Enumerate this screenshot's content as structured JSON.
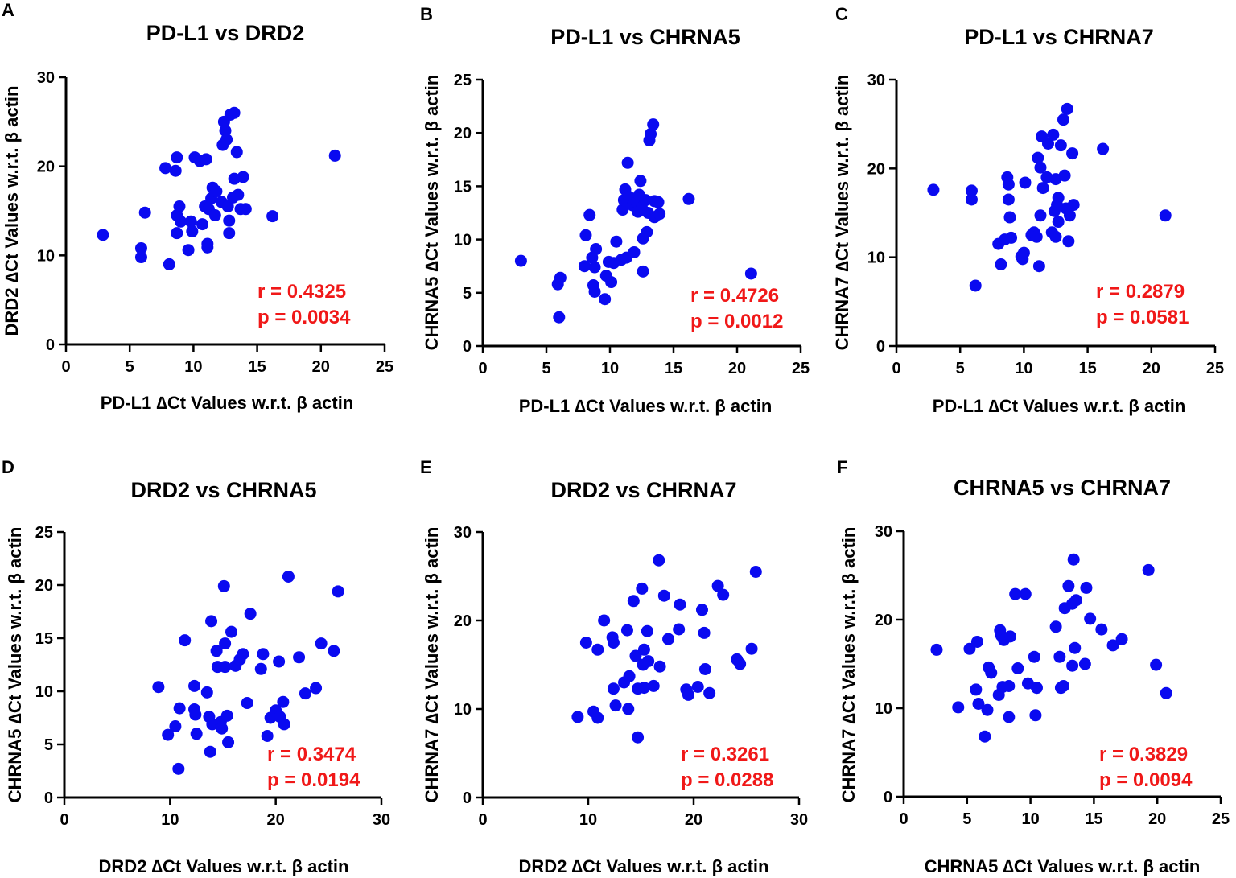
{
  "colors": {
    "point": "#0a0af0",
    "stats": "#f01818",
    "axis": "#000000"
  },
  "chart_data": [
    {
      "panel": "A",
      "type": "scatter",
      "title": "PD-L1 vs DRD2",
      "xlabel": "PD-L1 ∆Ct Values w.r.t. β actin",
      "ylabel": "DRD2 ∆Ct Values w.r.t. β actin",
      "xlim": [
        0,
        25
      ],
      "ylim": [
        0,
        30
      ],
      "xticks": [
        0,
        5,
        10,
        15,
        20,
        25
      ],
      "yticks": [
        0,
        10,
        20,
        30
      ],
      "r_text": "r = 0.4325",
      "p_text": "p = 0.0034",
      "points": [
        [
          2.9,
          12.3
        ],
        [
          5.9,
          10.8
        ],
        [
          5.9,
          9.8
        ],
        [
          6.2,
          14.8
        ],
        [
          7.8,
          19.8
        ],
        [
          8.1,
          9.0
        ],
        [
          8.7,
          21.0
        ],
        [
          8.6,
          19.5
        ],
        [
          8.7,
          14.5
        ],
        [
          8.7,
          12.5
        ],
        [
          8.9,
          15.5
        ],
        [
          9.0,
          13.8
        ],
        [
          9.6,
          10.6
        ],
        [
          9.8,
          13.8
        ],
        [
          9.9,
          12.7
        ],
        [
          10.1,
          21.0
        ],
        [
          10.5,
          20.6
        ],
        [
          10.7,
          13.5
        ],
        [
          10.9,
          15.5
        ],
        [
          11.0,
          20.8
        ],
        [
          11.1,
          11.3
        ],
        [
          11.1,
          10.9
        ],
        [
          11.2,
          15.2
        ],
        [
          11.4,
          16.4
        ],
        [
          11.5,
          17.6
        ],
        [
          11.7,
          14.5
        ],
        [
          11.8,
          17.2
        ],
        [
          12.2,
          16.0
        ],
        [
          12.3,
          22.4
        ],
        [
          12.4,
          25.0
        ],
        [
          12.5,
          24.0
        ],
        [
          12.6,
          23.0
        ],
        [
          12.7,
          15.5
        ],
        [
          12.8,
          13.9
        ],
        [
          12.8,
          12.5
        ],
        [
          12.9,
          25.8
        ],
        [
          13.1,
          16.5
        ],
        [
          13.2,
          26.0
        ],
        [
          13.2,
          18.6
        ],
        [
          13.4,
          21.6
        ],
        [
          13.5,
          16.8
        ],
        [
          13.7,
          15.2
        ],
        [
          13.9,
          18.8
        ],
        [
          14.1,
          15.2
        ],
        [
          16.2,
          14.4
        ],
        [
          21.1,
          21.2
        ]
      ]
    },
    {
      "panel": "B",
      "type": "scatter",
      "title": "PD-L1 vs CHRNA5",
      "xlabel": "PD-L1 ∆Ct Values w.r.t. β actin",
      "ylabel": "CHRNA5 ∆Ct Values w.r.t. β actin",
      "xlim": [
        0,
        25
      ],
      "ylim": [
        0,
        25
      ],
      "xticks": [
        0,
        5,
        10,
        15,
        20,
        25
      ],
      "yticks": [
        0,
        5,
        10,
        15,
        20,
        25
      ],
      "r_text": "r = 0.4726",
      "p_text": "p = 0.0012",
      "points": [
        [
          3.0,
          8.0
        ],
        [
          5.9,
          5.8
        ],
        [
          6.1,
          6.4
        ],
        [
          6.0,
          2.7
        ],
        [
          8.0,
          7.5
        ],
        [
          8.1,
          10.4
        ],
        [
          8.4,
          12.3
        ],
        [
          8.6,
          8.3
        ],
        [
          8.7,
          5.7
        ],
        [
          8.8,
          5.1
        ],
        [
          8.8,
          7.4
        ],
        [
          8.9,
          9.1
        ],
        [
          9.6,
          4.4
        ],
        [
          9.7,
          6.6
        ],
        [
          9.9,
          7.9
        ],
        [
          10.1,
          6.0
        ],
        [
          10.3,
          7.8
        ],
        [
          10.5,
          9.8
        ],
        [
          10.9,
          8.1
        ],
        [
          11.0,
          12.8
        ],
        [
          11.1,
          13.7
        ],
        [
          11.2,
          14.7
        ],
        [
          11.3,
          8.3
        ],
        [
          11.4,
          17.2
        ],
        [
          11.5,
          14.0
        ],
        [
          11.8,
          13.2
        ],
        [
          11.9,
          8.8
        ],
        [
          12.1,
          13.5
        ],
        [
          12.2,
          12.6
        ],
        [
          12.3,
          14.2
        ],
        [
          12.4,
          15.5
        ],
        [
          12.5,
          13.0
        ],
        [
          12.6,
          10.1
        ],
        [
          12.6,
          7.0
        ],
        [
          12.8,
          13.7
        ],
        [
          12.9,
          10.7
        ],
        [
          13.0,
          12.5
        ],
        [
          13.1,
          19.3
        ],
        [
          13.2,
          19.9
        ],
        [
          13.4,
          20.8
        ],
        [
          13.5,
          13.6
        ],
        [
          13.5,
          12.1
        ],
        [
          13.8,
          13.5
        ],
        [
          13.9,
          12.4
        ],
        [
          16.2,
          13.8
        ],
        [
          21.1,
          6.8
        ]
      ]
    },
    {
      "panel": "C",
      "type": "scatter",
      "title": "PD-L1 vs CHRNA7",
      "xlabel": "PD-L1 ∆Ct Values w.r.t. β actin",
      "ylabel": "CHRNA7 ∆Ct Values w.r.t. β actin",
      "xlim": [
        0,
        25
      ],
      "ylim": [
        0,
        30
      ],
      "xticks": [
        0,
        5,
        10,
        15,
        20,
        25
      ],
      "yticks": [
        0,
        10,
        20,
        30
      ],
      "r_text": "r = 0.2879",
      "p_text": "p = 0.0581",
      "points": [
        [
          2.9,
          17.6
        ],
        [
          5.9,
          17.5
        ],
        [
          5.9,
          16.5
        ],
        [
          6.2,
          6.8
        ],
        [
          8.0,
          11.5
        ],
        [
          8.2,
          9.2
        ],
        [
          8.5,
          12.0
        ],
        [
          8.7,
          19.0
        ],
        [
          8.8,
          18.2
        ],
        [
          8.8,
          16.5
        ],
        [
          8.9,
          14.5
        ],
        [
          9.0,
          12.2
        ],
        [
          9.8,
          10.1
        ],
        [
          9.9,
          9.8
        ],
        [
          10.0,
          10.5
        ],
        [
          10.1,
          18.4
        ],
        [
          10.6,
          12.5
        ],
        [
          10.8,
          12.8
        ],
        [
          11.0,
          12.3
        ],
        [
          11.1,
          21.2
        ],
        [
          11.2,
          9.0
        ],
        [
          11.3,
          20.1
        ],
        [
          11.3,
          14.7
        ],
        [
          11.4,
          23.6
        ],
        [
          11.5,
          17.8
        ],
        [
          11.8,
          19.0
        ],
        [
          11.9,
          22.8
        ],
        [
          12.2,
          12.8
        ],
        [
          12.3,
          23.8
        ],
        [
          12.4,
          15.2
        ],
        [
          12.5,
          12.3
        ],
        [
          12.5,
          18.8
        ],
        [
          12.6,
          15.9
        ],
        [
          12.7,
          16.7
        ],
        [
          12.7,
          14.0
        ],
        [
          12.9,
          22.6
        ],
        [
          13.1,
          25.5
        ],
        [
          13.2,
          19.2
        ],
        [
          13.3,
          15.5
        ],
        [
          13.4,
          26.7
        ],
        [
          13.5,
          11.8
        ],
        [
          13.6,
          14.7
        ],
        [
          13.8,
          21.7
        ],
        [
          13.9,
          15.9
        ],
        [
          16.2,
          22.2
        ],
        [
          21.1,
          14.7
        ]
      ]
    },
    {
      "panel": "D",
      "type": "scatter",
      "title": "DRD2 vs CHRNA5",
      "xlabel": "DRD2 ∆Ct Values w.r.t. β actin",
      "ylabel": "CHRNA5 ∆Ct Values w.r.t. β actin",
      "xlim": [
        0,
        30
      ],
      "ylim": [
        0,
        25
      ],
      "xticks": [
        0,
        10,
        20,
        30
      ],
      "yticks": [
        0,
        5,
        10,
        15,
        20,
        25
      ],
      "r_text": "r = 0.3474",
      "p_text": "p = 0.0194",
      "points": [
        [
          8.9,
          10.4
        ],
        [
          9.8,
          5.9
        ],
        [
          10.5,
          6.7
        ],
        [
          10.8,
          2.7
        ],
        [
          10.9,
          8.4
        ],
        [
          11.4,
          14.8
        ],
        [
          12.3,
          10.5
        ],
        [
          12.3,
          8.3
        ],
        [
          12.4,
          7.8
        ],
        [
          12.5,
          6.0
        ],
        [
          13.5,
          9.9
        ],
        [
          13.7,
          7.6
        ],
        [
          13.8,
          4.3
        ],
        [
          13.9,
          16.6
        ],
        [
          14.0,
          6.9
        ],
        [
          14.4,
          13.8
        ],
        [
          14.5,
          12.3
        ],
        [
          14.8,
          7.1
        ],
        [
          14.9,
          6.5
        ],
        [
          15.1,
          19.9
        ],
        [
          15.2,
          14.5
        ],
        [
          15.2,
          12.3
        ],
        [
          15.4,
          7.7
        ],
        [
          15.5,
          5.2
        ],
        [
          15.8,
          15.6
        ],
        [
          16.2,
          12.4
        ],
        [
          16.6,
          13.0
        ],
        [
          16.9,
          13.5
        ],
        [
          17.3,
          8.9
        ],
        [
          17.6,
          17.3
        ],
        [
          18.6,
          12.1
        ],
        [
          18.8,
          13.5
        ],
        [
          19.2,
          5.8
        ],
        [
          19.5,
          7.5
        ],
        [
          20.0,
          8.2
        ],
        [
          20.3,
          12.8
        ],
        [
          20.4,
          7.6
        ],
        [
          20.7,
          9.0
        ],
        [
          20.8,
          6.9
        ],
        [
          21.2,
          20.8
        ],
        [
          22.2,
          13.2
        ],
        [
          22.8,
          9.8
        ],
        [
          23.8,
          10.3
        ],
        [
          24.3,
          14.5
        ],
        [
          25.5,
          13.8
        ],
        [
          25.9,
          19.4
        ]
      ]
    },
    {
      "panel": "E",
      "type": "scatter",
      "title": "DRD2 vs CHRNA7",
      "xlabel": "DRD2 ∆Ct Values w.r.t. β actin",
      "ylabel": "CHRNA7 ∆Ct Values w.r.t. β actin",
      "xlim": [
        0,
        30
      ],
      "ylim": [
        0,
        30
      ],
      "xticks": [
        0,
        10,
        20,
        30
      ],
      "yticks": [
        0,
        10,
        20,
        30
      ],
      "r_text": "r = 0.3261",
      "p_text": "p = 0.0288",
      "points": [
        [
          9.0,
          9.1
        ],
        [
          9.8,
          17.5
        ],
        [
          10.5,
          9.7
        ],
        [
          10.9,
          16.7
        ],
        [
          10.9,
          9.0
        ],
        [
          11.5,
          20.0
        ],
        [
          12.3,
          18.1
        ],
        [
          12.4,
          17.5
        ],
        [
          12.4,
          12.3
        ],
        [
          12.6,
          10.4
        ],
        [
          13.4,
          13.0
        ],
        [
          13.7,
          18.9
        ],
        [
          13.8,
          10.0
        ],
        [
          13.9,
          13.7
        ],
        [
          14.3,
          22.2
        ],
        [
          14.5,
          16.0
        ],
        [
          14.7,
          6.8
        ],
        [
          14.7,
          12.3
        ],
        [
          15.1,
          23.6
        ],
        [
          15.3,
          16.7
        ],
        [
          15.2,
          15.0
        ],
        [
          15.3,
          12.4
        ],
        [
          15.6,
          18.8
        ],
        [
          15.7,
          15.4
        ],
        [
          16.2,
          12.6
        ],
        [
          16.7,
          26.8
        ],
        [
          16.8,
          14.8
        ],
        [
          17.2,
          22.8
        ],
        [
          17.6,
          17.9
        ],
        [
          18.6,
          19.0
        ],
        [
          18.7,
          21.8
        ],
        [
          19.3,
          12.2
        ],
        [
          19.5,
          11.6
        ],
        [
          20.4,
          12.5
        ],
        [
          20.8,
          21.2
        ],
        [
          21.0,
          18.6
        ],
        [
          21.1,
          14.5
        ],
        [
          21.5,
          11.8
        ],
        [
          22.3,
          23.9
        ],
        [
          22.8,
          22.9
        ],
        [
          24.1,
          15.6
        ],
        [
          24.4,
          15.1
        ],
        [
          25.5,
          16.8
        ],
        [
          25.9,
          25.5
        ]
      ]
    },
    {
      "panel": "F",
      "type": "scatter",
      "title": "CHRNA5 vs CHRNA7",
      "xlabel": "CHRNA5 ∆Ct Values w.r.t. β actin",
      "ylabel": "CHRNA7 ∆Ct Values w.r.t. β actin",
      "xlim": [
        0,
        25
      ],
      "ylim": [
        0,
        30
      ],
      "xticks": [
        0,
        5,
        10,
        15,
        20,
        25
      ],
      "yticks": [
        0,
        10,
        20,
        30
      ],
      "r_text": "r = 0.3829",
      "p_text": "p = 0.0094",
      "points": [
        [
          2.6,
          16.6
        ],
        [
          4.3,
          10.1
        ],
        [
          5.2,
          16.7
        ],
        [
          5.7,
          12.1
        ],
        [
          5.8,
          17.5
        ],
        [
          5.9,
          10.5
        ],
        [
          6.4,
          6.8
        ],
        [
          6.6,
          9.8
        ],
        [
          6.7,
          14.6
        ],
        [
          6.9,
          14.0
        ],
        [
          7.5,
          11.5
        ],
        [
          7.6,
          18.8
        ],
        [
          7.7,
          18.2
        ],
        [
          7.8,
          12.4
        ],
        [
          7.9,
          17.7
        ],
        [
          8.3,
          9.0
        ],
        [
          8.3,
          12.5
        ],
        [
          8.4,
          18.1
        ],
        [
          8.8,
          22.9
        ],
        [
          9.0,
          14.5
        ],
        [
          9.6,
          22.9
        ],
        [
          9.8,
          12.8
        ],
        [
          10.3,
          15.8
        ],
        [
          10.4,
          9.2
        ],
        [
          10.5,
          12.3
        ],
        [
          12.0,
          19.2
        ],
        [
          12.3,
          15.8
        ],
        [
          12.4,
          12.3
        ],
        [
          12.6,
          12.5
        ],
        [
          12.7,
          21.3
        ],
        [
          13.0,
          23.8
        ],
        [
          13.3,
          14.8
        ],
        [
          13.3,
          21.8
        ],
        [
          13.4,
          26.8
        ],
        [
          13.5,
          16.8
        ],
        [
          13.6,
          22.2
        ],
        [
          14.3,
          15.0
        ],
        [
          14.4,
          23.6
        ],
        [
          14.7,
          20.1
        ],
        [
          15.6,
          18.9
        ],
        [
          16.5,
          17.1
        ],
        [
          17.2,
          17.8
        ],
        [
          19.3,
          25.6
        ],
        [
          19.9,
          14.9
        ],
        [
          20.7,
          11.7
        ]
      ]
    }
  ]
}
